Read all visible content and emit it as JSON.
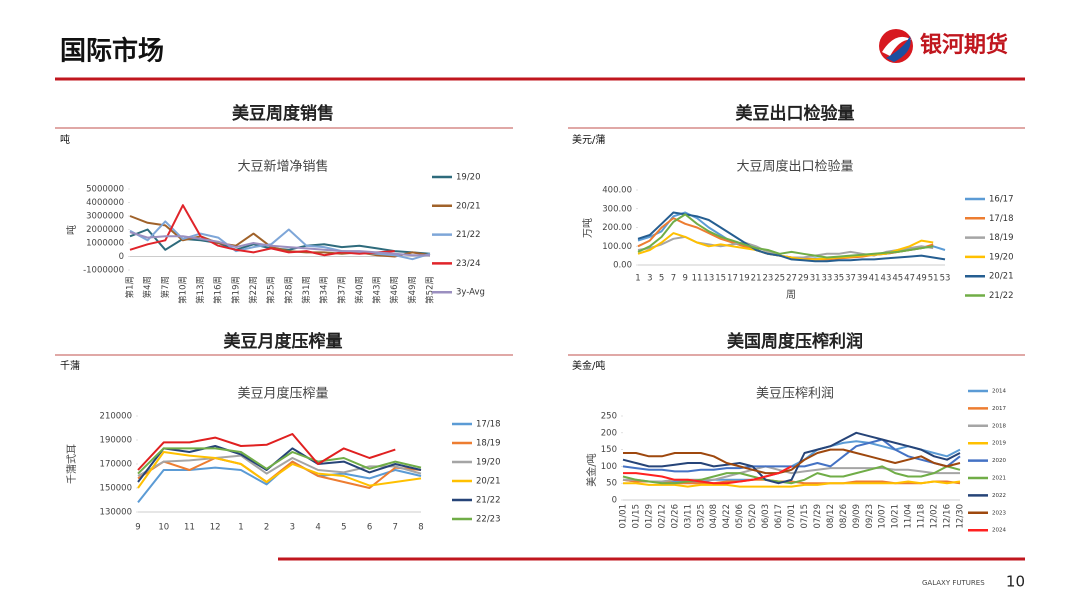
{
  "header": {
    "title": "国际市场",
    "logo": "银河期货"
  },
  "footer": {
    "brand": "GALAXY FUTURES",
    "page": "10"
  },
  "chart_data": [
    {
      "type": "line",
      "section_title": "美豆周度销售",
      "unit": "吨",
      "title": "大豆新增净销售",
      "y_label": "吨",
      "categories": [
        "第1周",
        "第4周",
        "第7周",
        "第10周",
        "第13周",
        "第16周",
        "第19周",
        "第22周",
        "第25周",
        "第28周",
        "第31周",
        "第34周",
        "第37周",
        "第40周",
        "第43周",
        "第46周",
        "第49周",
        "第52周"
      ],
      "ylim": [
        -1000000,
        5000000
      ],
      "yticks": [
        -1000000,
        0,
        1000000,
        2000000,
        3000000,
        4000000,
        5000000
      ],
      "grid": false,
      "series": [
        {
          "name": "19/20",
          "color": "#2e6b7c",
          "values": [
            1500000,
            2000000,
            500000,
            1300000,
            1200000,
            1000000,
            500000,
            900000,
            600000,
            500000,
            800000,
            900000,
            700000,
            800000,
            600000,
            400000,
            300000,
            200000
          ]
        },
        {
          "name": "20/21",
          "color": "#a0622a",
          "values": [
            3000000,
            2500000,
            2300000,
            1200000,
            1500000,
            1000000,
            800000,
            1700000,
            700000,
            400000,
            300000,
            300000,
            200000,
            300000,
            100000,
            0,
            300000,
            100000
          ]
        },
        {
          "name": "21/22",
          "color": "#7ea6d8",
          "values": [
            1900000,
            1200000,
            2600000,
            1300000,
            1700000,
            1400000,
            400000,
            700000,
            900000,
            2000000,
            800000,
            700000,
            400000,
            300000,
            200000,
            100000,
            -200000,
            200000
          ]
        },
        {
          "name": "23/24",
          "color": "#e0242a",
          "values": [
            500000,
            900000,
            1200000,
            3800000,
            1500000,
            800000,
            500000,
            300000,
            600000,
            300000,
            400000,
            100000,
            300000,
            200000,
            300000,
            400000,
            null,
            null
          ]
        },
        {
          "name": "3y-Avg",
          "color": "#9b8fc0",
          "values": [
            1800000,
            1400000,
            1500000,
            1500000,
            1300000,
            1100000,
            700000,
            1000000,
            800000,
            700000,
            600000,
            500000,
            400000,
            400000,
            300000,
            200000,
            100000,
            100000
          ]
        }
      ]
    },
    {
      "type": "line",
      "section_title": "美豆出口检验量",
      "unit": "美元/蒲",
      "title": "大豆周度出口检验量",
      "y_label": "万吨",
      "x_label": "周",
      "categories": [
        "1",
        "3",
        "5",
        "7",
        "9",
        "11",
        "13",
        "15",
        "17",
        "19",
        "21",
        "23",
        "25",
        "27",
        "29",
        "31",
        "33",
        "35",
        "37",
        "39",
        "41",
        "43",
        "45",
        "47",
        "49",
        "51",
        "53"
      ],
      "ylim": [
        0,
        400
      ],
      "yticks": [
        {
          "value": 0,
          "label": "0.00"
        },
        {
          "value": 100,
          "label": "100.00"
        },
        {
          "value": 200,
          "label": "200.00"
        },
        {
          "value": 300,
          "label": "300.00"
        },
        {
          "value": 400,
          "label": "400.00"
        }
      ],
      "grid": false,
      "series": [
        {
          "name": "16/17",
          "color": "#5b9bd5",
          "values": [
            130,
            150,
            180,
            260,
            280,
            250,
            200,
            160,
            120,
            100,
            80,
            60,
            50,
            40,
            30,
            35,
            30,
            40,
            45,
            50,
            55,
            60,
            70,
            80,
            90,
            100,
            80
          ]
        },
        {
          "name": "17/18",
          "color": "#ed7d31",
          "values": [
            100,
            130,
            200,
            250,
            220,
            200,
            170,
            140,
            120,
            100,
            80,
            60,
            50,
            40,
            35,
            30,
            30,
            35,
            40,
            45,
            55,
            60,
            70,
            80,
            90,
            110,
            null
          ]
        },
        {
          "name": "18/19",
          "color": "#a5a5a5",
          "values": [
            80,
            90,
            110,
            140,
            150,
            120,
            110,
            100,
            110,
            120,
            100,
            70,
            50,
            40,
            40,
            50,
            60,
            60,
            70,
            60,
            50,
            70,
            80,
            90,
            100,
            90,
            null
          ]
        },
        {
          "name": "19/20",
          "color": "#ffc000",
          "values": [
            60,
            80,
            120,
            170,
            150,
            120,
            100,
            110,
            100,
            90,
            80,
            60,
            50,
            40,
            30,
            30,
            35,
            40,
            45,
            50,
            55,
            60,
            80,
            100,
            130,
            120,
            null
          ]
        },
        {
          "name": "20/21",
          "color": "#255e91",
          "values": [
            140,
            160,
            220,
            280,
            270,
            260,
            240,
            200,
            160,
            120,
            80,
            60,
            50,
            30,
            25,
            20,
            20,
            25,
            25,
            30,
            30,
            35,
            40,
            45,
            50,
            40,
            30
          ]
        },
        {
          "name": "21/22",
          "color": "#70ad47",
          "values": [
            70,
            100,
            150,
            230,
            270,
            220,
            180,
            150,
            130,
            110,
            90,
            80,
            60,
            70,
            60,
            50,
            40,
            45,
            50,
            55,
            60,
            65,
            70,
            80,
            90,
            100,
            null
          ]
        }
      ]
    },
    {
      "type": "line",
      "section_title": "美豆月度压榨量",
      "unit": "千蒲",
      "title": "美豆月度压榨量",
      "y_label": "千蒲式耳",
      "categories": [
        "9",
        "10",
        "11",
        "12",
        "1",
        "2",
        "3",
        "4",
        "5",
        "6",
        "7",
        "8"
      ],
      "ylim": [
        130000,
        210000
      ],
      "yticks": [
        130000,
        150000,
        170000,
        190000,
        210000
      ],
      "grid": false,
      "series": [
        {
          "name": "17/18",
          "color": "#5b9bd5",
          "values": [
            138000,
            165000,
            165000,
            167000,
            165000,
            153000,
            172000,
            160000,
            162000,
            158000,
            165000,
            160000
          ]
        },
        {
          "name": "18/19",
          "color": "#ed7d31",
          "values": [
            158000,
            172000,
            165000,
            175000,
            170000,
            155000,
            172000,
            160000,
            155000,
            150000,
            167000,
            165000
          ]
        },
        {
          "name": "19/20",
          "color": "#a5a5a5",
          "values": [
            160000,
            172000,
            173000,
            175000,
            177000,
            162000,
            175000,
            165000,
            163000,
            168000,
            168000,
            162000
          ]
        },
        {
          "name": "20/21",
          "color": "#ffc000",
          "values": [
            150000,
            180000,
            177000,
            175000,
            170000,
            155000,
            170000,
            162000,
            160000,
            152000,
            155000,
            158000
          ]
        },
        {
          "name": "21/22",
          "color": "#264478",
          "values": [
            155000,
            183000,
            180000,
            185000,
            178000,
            165000,
            183000,
            170000,
            172000,
            163000,
            170000,
            165000
          ]
        },
        {
          "name": "22/23",
          "color": "#70ad47",
          "values": [
            162000,
            183000,
            183000,
            183000,
            180000,
            166000,
            180000,
            172000,
            175000,
            166000,
            172000,
            167000
          ]
        },
        {
          "color": "#e02020",
          "values": [
            165000,
            188000,
            188000,
            192000,
            185000,
            186000,
            195000,
            170000,
            183000,
            175000,
            182000,
            null
          ]
        }
      ]
    },
    {
      "type": "line",
      "section_title": "美国周度压榨利润",
      "unit": "美金/吨",
      "title": "美豆压榨利润",
      "y_label": "美金/吨",
      "categories": [
        "01/01",
        "01/15",
        "01/29",
        "02/12",
        "02/26",
        "03/11",
        "03/25",
        "04/08",
        "04/22",
        "05/06",
        "05/20",
        "06/03",
        "06/17",
        "07/01",
        "07/15",
        "07/29",
        "08/12",
        "08/26",
        "09/09",
        "09/23",
        "10/07",
        "10/21",
        "11/04",
        "11/18",
        "12/02",
        "12/16",
        "12/30"
      ],
      "ylim": [
        0,
        250
      ],
      "yticks": [
        0,
        50,
        100,
        150,
        200,
        250
      ],
      "grid": false,
      "series": [
        {
          "name": "2014",
          "color": "#5b9bd5",
          "values": [
            60,
            55,
            55,
            55,
            55,
            55,
            55,
            60,
            60,
            60,
            60,
            70,
            80,
            100,
            120,
            150,
            160,
            170,
            175,
            170,
            160,
            150,
            160,
            150,
            140,
            130,
            150
          ]
        },
        {
          "name": "2017",
          "color": "#ed7d31",
          "values": [
            60,
            55,
            55,
            55,
            50,
            50,
            50,
            50,
            55,
            55,
            60,
            60,
            55,
            55,
            50,
            50,
            50,
            50,
            55,
            55,
            55,
            50,
            50,
            50,
            55,
            55,
            50
          ]
        },
        {
          "name": "2018",
          "color": "#a5a5a5",
          "values": [
            60,
            60,
            55,
            55,
            60,
            60,
            60,
            60,
            70,
            80,
            90,
            100,
            90,
            80,
            85,
            90,
            95,
            95,
            95,
            95,
            95,
            90,
            90,
            85,
            80,
            80,
            80
          ]
        },
        {
          "name": "2019",
          "color": "#ffc000",
          "values": [
            50,
            50,
            45,
            45,
            45,
            40,
            45,
            45,
            45,
            40,
            40,
            40,
            40,
            40,
            45,
            45,
            50,
            50,
            50,
            50,
            50,
            50,
            55,
            50,
            55,
            50,
            55
          ]
        },
        {
          "name": "2020",
          "color": "#4472c4",
          "values": [
            100,
            95,
            90,
            90,
            85,
            85,
            90,
            90,
            95,
            95,
            100,
            100,
            100,
            100,
            100,
            110,
            100,
            130,
            160,
            170,
            180,
            150,
            130,
            120,
            110,
            100,
            130
          ]
        },
        {
          "name": "2021",
          "color": "#70ad47",
          "values": [
            70,
            60,
            55,
            50,
            50,
            55,
            60,
            70,
            80,
            80,
            70,
            60,
            55,
            50,
            60,
            80,
            70,
            70,
            80,
            90,
            100,
            80,
            70,
            70,
            80,
            100,
            90
          ]
        },
        {
          "name": "2022",
          "color": "#264478",
          "values": [
            120,
            110,
            100,
            100,
            105,
            110,
            110,
            100,
            105,
            110,
            100,
            60,
            50,
            60,
            140,
            150,
            160,
            180,
            200,
            190,
            180,
            170,
            160,
            150,
            130,
            120,
            140
          ]
        },
        {
          "name": "2023",
          "color": "#9e480e",
          "values": [
            140,
            140,
            130,
            130,
            140,
            140,
            140,
            130,
            110,
            100,
            90,
            80,
            80,
            90,
            120,
            140,
            150,
            150,
            140,
            130,
            120,
            110,
            120,
            130,
            110,
            100,
            110
          ]
        },
        {
          "name": "2024",
          "color": "#ff2020",
          "values": [
            80,
            80,
            75,
            70,
            60,
            60,
            55,
            50,
            50,
            55,
            60,
            70,
            80,
            100,
            null,
            null,
            null,
            null,
            null,
            null,
            null,
            null,
            null,
            null,
            null,
            null,
            null
          ]
        }
      ]
    }
  ]
}
